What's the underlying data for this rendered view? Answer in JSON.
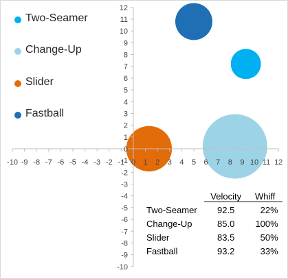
{
  "chart_data": {
    "type": "bubble",
    "xlim": [
      -10,
      12
    ],
    "ylim": [
      -10,
      12
    ],
    "x_ticks": [
      -10,
      -9,
      -8,
      -7,
      -6,
      -5,
      -4,
      -3,
      -2,
      -1,
      0,
      1,
      2,
      3,
      4,
      5,
      6,
      7,
      8,
      9,
      10,
      11,
      12
    ],
    "y_ticks": [
      -10,
      -9,
      -8,
      -7,
      -6,
      -5,
      -4,
      -3,
      -2,
      -1,
      0,
      1,
      2,
      3,
      4,
      5,
      6,
      7,
      8,
      9,
      10,
      11,
      12
    ],
    "grid": false,
    "legend_position": "top-left",
    "series": [
      {
        "name": "Two-Seamer",
        "x": 9.3,
        "y": 7.2,
        "size": 22,
        "color": "#00b0f0"
      },
      {
        "name": "Change-Up",
        "x": 8.4,
        "y": 0.2,
        "size": 100,
        "color": "#9dd3e6"
      },
      {
        "name": "Slider",
        "x": 1.3,
        "y": 0.0,
        "size": 50,
        "color": "#e36c0a"
      },
      {
        "name": "Fastball",
        "x": 5.0,
        "y": 10.8,
        "size": 33,
        "color": "#1f6fb5"
      }
    ]
  },
  "legend": [
    {
      "label": "Two-Seamer",
      "color": "#00b0f0"
    },
    {
      "label": "Change-Up",
      "color": "#9dd3e6"
    },
    {
      "label": "Slider",
      "color": "#e36c0a"
    },
    {
      "label": "Fastball",
      "color": "#1f6fb5"
    }
  ],
  "stats_table": {
    "headers": {
      "velocity": "Velocity",
      "whiff": "Whiff"
    },
    "rows": [
      {
        "name": "Two-Seamer",
        "velocity": "92.5",
        "whiff": "22%"
      },
      {
        "name": "Change-Up",
        "velocity": "85.0",
        "whiff": "100%"
      },
      {
        "name": "Slider",
        "velocity": "83.5",
        "whiff": "50%"
      },
      {
        "name": "Fastball",
        "velocity": "93.2",
        "whiff": "33%"
      }
    ]
  }
}
